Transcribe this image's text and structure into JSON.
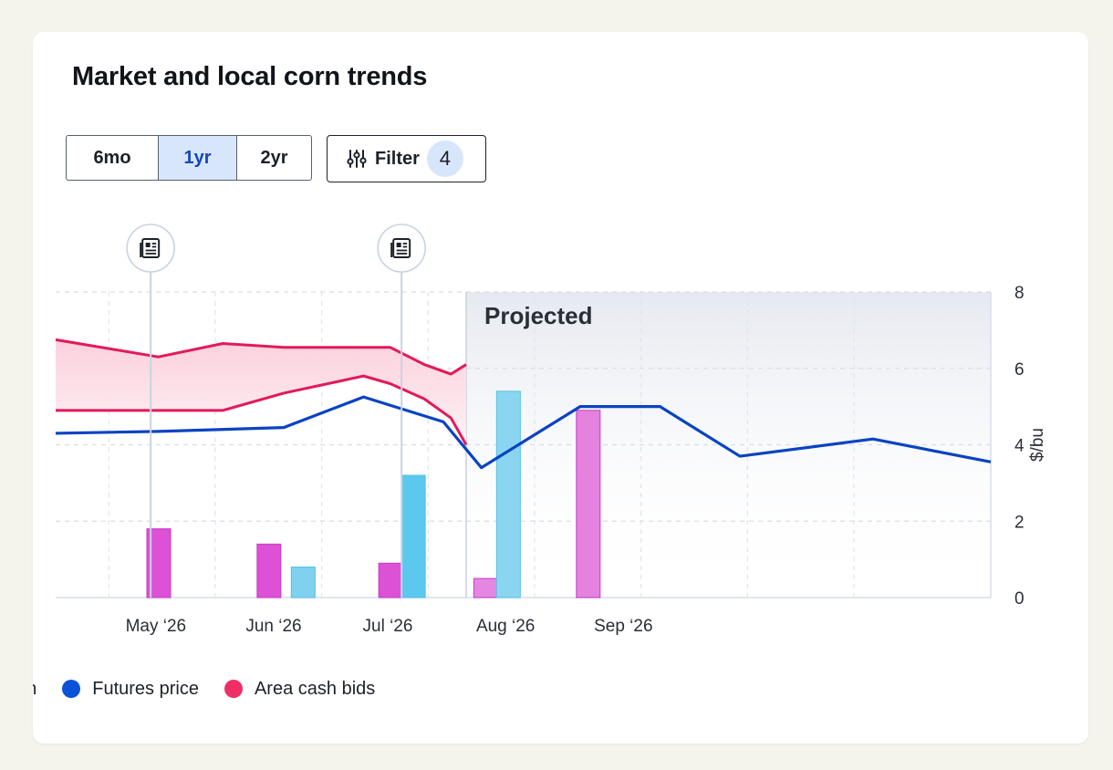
{
  "card": {
    "title": "Market and local corn trends"
  },
  "range_selector": {
    "options": [
      "6mo",
      "1yr",
      "2yr"
    ],
    "selected": "1yr"
  },
  "filter": {
    "label": "Filter",
    "count": "4",
    "icon": "sliders-icon"
  },
  "chart_data": {
    "type": "line",
    "title": "",
    "ylabel": "$/bu",
    "ylim": [
      0,
      8
    ],
    "yticks": [
      "0",
      "2",
      "4",
      "6",
      "8"
    ],
    "x_tick_labels": [
      "May ‘26",
      "Jun ‘26",
      "Jul ‘26",
      "Aug ‘26",
      "Sep ‘26"
    ],
    "x_tick_dates": [
      "2026-05-01",
      "2026-06-01",
      "2026-07-01",
      "2026-08-01",
      "2026-09-01"
    ],
    "xlim": [
      "2026-04-08",
      "2026-12-10"
    ],
    "projected_label": "Projected",
    "projected_start": "2026-07-25",
    "grid": true,
    "series": [
      {
        "name": "Futures price",
        "color": "#0a43c2",
        "points": [
          [
            "2026-04-08",
            4.3
          ],
          [
            "2026-05-05",
            4.35
          ],
          [
            "2026-06-07",
            4.45
          ],
          [
            "2026-06-28",
            5.25
          ],
          [
            "2026-07-19",
            4.6
          ],
          [
            "2026-07-29",
            3.4
          ],
          [
            "2026-08-24",
            5.0
          ],
          [
            "2026-09-14",
            5.0
          ],
          [
            "2026-10-05",
            3.7
          ],
          [
            "2026-11-09",
            4.15
          ],
          [
            "2026-12-10",
            3.55
          ]
        ]
      },
      {
        "name": "Area cash bids",
        "color": "#e3195a",
        "band": [
          [
            "2026-04-08",
            6.75,
            4.9
          ],
          [
            "2026-05-05",
            6.3,
            4.9
          ],
          [
            "2026-05-22",
            6.65,
            4.9
          ],
          [
            "2026-06-07",
            6.55,
            5.35
          ],
          [
            "2026-06-28",
            6.55,
            5.8
          ],
          [
            "2026-07-05",
            6.55,
            5.6
          ],
          [
            "2026-07-14",
            6.1,
            5.2
          ],
          [
            "2026-07-21",
            5.85,
            4.7
          ],
          [
            "2026-07-25",
            6.1,
            4.0
          ]
        ]
      }
    ],
    "bars": [
      {
        "date": "2026-05-02",
        "value": 1.8,
        "color": "#dd51d6",
        "kind": "event"
      },
      {
        "date": "2026-05-31",
        "value": 1.4,
        "color": "#dd51d6",
        "kind": "event"
      },
      {
        "date": "2026-06-09",
        "value": 0.8,
        "color": "#7fd1ee",
        "kind": "volume"
      },
      {
        "date": "2026-07-02",
        "value": 0.9,
        "color": "#dd51d6",
        "kind": "event"
      },
      {
        "date": "2026-07-08",
        "value": 3.2,
        "color": "#5cc8ee",
        "kind": "volume"
      },
      {
        "date": "2026-07-27",
        "value": 0.5,
        "color": "#e487e3",
        "kind": "event"
      },
      {
        "date": "2026-08-02",
        "value": 5.4,
        "color": "#8ad6f0",
        "kind": "volume"
      },
      {
        "date": "2026-08-23",
        "value": 4.9,
        "color": "#e582de",
        "kind": "event"
      }
    ],
    "news_markers": [
      {
        "date": "2026-05-03",
        "icon": "news-icon"
      },
      {
        "date": "2026-07-08",
        "icon": "news-icon"
      }
    ]
  },
  "legend": {
    "items": [
      {
        "label": "on",
        "color": "#6b6f78",
        "truncated": true
      },
      {
        "label": "Futures price",
        "color": "#0a53d6"
      },
      {
        "label": "Area cash bids",
        "color": "#ef2e66"
      }
    ]
  }
}
